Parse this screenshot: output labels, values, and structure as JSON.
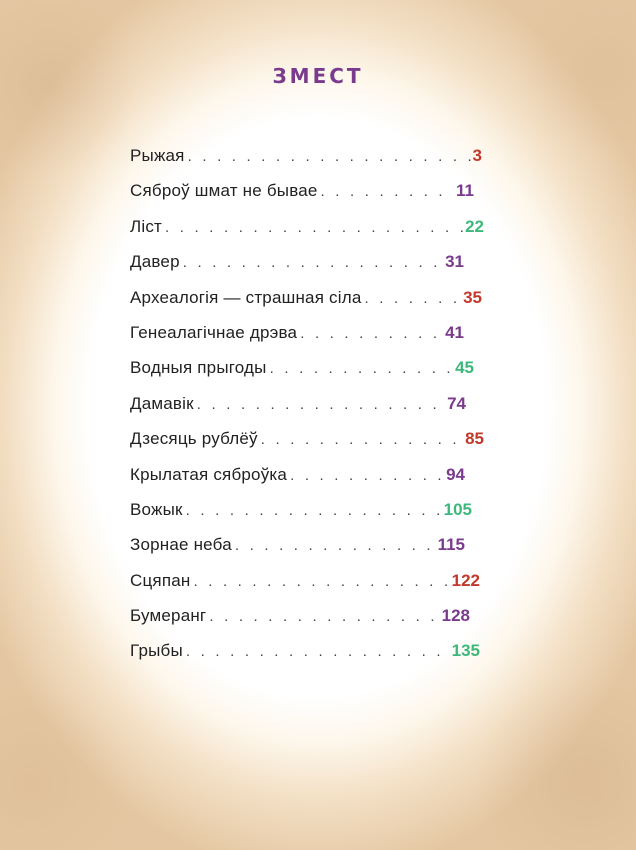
{
  "title": "ЗМЕСТ",
  "colors": {
    "title": "#7a3b8c",
    "red": "#c0392b",
    "purple": "#7a3b8c",
    "green": "#3bb87a"
  },
  "entries": [
    {
      "label": "Рыжая",
      "page": "3",
      "color": "#c0392b",
      "pad": 8
    },
    {
      "label": "Сяброў шмат не бывае",
      "page": "11",
      "color": "#7a3b8c",
      "pad": 16
    },
    {
      "label": "Ліст",
      "page": "22",
      "color": "#3bb87a",
      "pad": 6
    },
    {
      "label": "Давер",
      "page": "31",
      "color": "#7a3b8c",
      "pad": 26
    },
    {
      "label": "Археалогія — страшная сіла",
      "page": "35",
      "color": "#c0392b",
      "pad": 8
    },
    {
      "label": "Генеалагічнае  дрэва",
      "page": "41",
      "color": "#7a3b8c",
      "pad": 26
    },
    {
      "label": "Водныя прыгоды",
      "page": "45",
      "color": "#3bb87a",
      "pad": 16
    },
    {
      "label": "Дамавік",
      "page": "74",
      "color": "#7a3b8c",
      "pad": 24
    },
    {
      "label": "Дзесяць рублёў",
      "page": "85",
      "color": "#c0392b",
      "pad": 6
    },
    {
      "label": "Крылатая сяброўка",
      "page": "94",
      "color": "#7a3b8c",
      "pad": 25
    },
    {
      "label": "Вожык",
      "page": "105",
      "color": "#3bb87a",
      "pad": 18
    },
    {
      "label": "Зорнае неба",
      "page": "115",
      "color": "#7a3b8c",
      "pad": 25
    },
    {
      "label": "Сцяпан",
      "page": "122",
      "color": "#c0392b",
      "pad": 10
    },
    {
      "label": "Бумеранг",
      "page": "128",
      "color": "#7a3b8c",
      "pad": 20
    },
    {
      "label": "Грыбы",
      "page": "135",
      "color": "#3bb87a",
      "pad": 10
    }
  ]
}
